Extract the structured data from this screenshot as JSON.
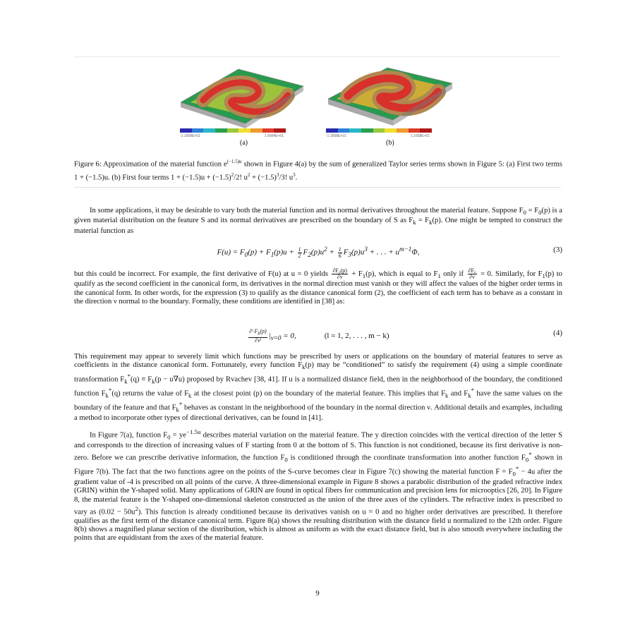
{
  "figure": {
    "sub_a_label": "(a)",
    "sub_b_label": "(b)",
    "colorbar_a_min": "-1.1658E+01",
    "colorbar_a_max": "1.5664E+01",
    "colorbar_b_min": "-1.1658E+01",
    "colorbar_b_max": "1.1658E+01",
    "colorbar_colors": [
      "#2a2ab0",
      "#2f7fd8",
      "#29b8c8",
      "#2aa050",
      "#9cc83a",
      "#f0e030",
      "#f09a30",
      "#e03a2a",
      "#b01818"
    ]
  },
  "caption": {
    "p1": "Figure 6: Approximation of the material function e",
    "p1_sup": "(−1.5)u",
    "p2": " shown in Figure 4(a) by the sum of generalized Taylor series terms shown in Figure 5: (a) First two terms 1 + (−1.5)u. (b) First four terms 1 + (−1.5)u + ",
    "p3": "(−1.5)",
    "p3_sup": "2",
    "p4": "/2! u",
    "p4_sup": "2",
    "p5": " + (−1.5)",
    "p5_sup": "3",
    "p6": "/3! u",
    "p6_sup": "3",
    "p7": "."
  },
  "para1": {
    "a": "In some applications, it may be desirable to vary both the material function and its normal derivatives throughout the material feature. Suppose F",
    "a_sub": "0",
    "b": " = F",
    "b_sub": "0",
    "c": "(p) is a given material distribution on the feature S and its normal derivatives are prescribed on the boundary of S as F",
    "c_sub": "k",
    "d": " = F",
    "d_sub": "k",
    "e": "(p). One might be tempted to construct the material function as"
  },
  "eq3": {
    "left": "F(u) = F",
    "s0": "0",
    "m1": "(p) + F",
    "s1": "1",
    "m2": "(p)u + ",
    "f1t": "1",
    "f1b": "2",
    "m3": "F",
    "s2": "2",
    "m4": "(p)u",
    "p2": "2",
    "m5": " + ",
    "f2t": "1",
    "f2b": "6",
    "m6": "F",
    "s3": "3",
    "m7": "(p)u",
    "p3": "3",
    "m8": " + . . . + u",
    "pm": "m−1",
    "m9": "Φ,",
    "number": "(3)"
  },
  "para2": {
    "a": "but this could be incorrect. For example, the first derivative of F(u) at u = 0 yields ",
    "f1t": "∂F₀(p)",
    "f1b": "∂ν",
    "b": " + F",
    "b_sub": "1",
    "c": "(p), which is equal to F",
    "c_sub": "1",
    "d": " only if ",
    "f2t": "∂F₀",
    "f2b": "∂ν",
    "e": " = 0. Similarly, for F",
    "e_sub": "1",
    "f": "(p) to qualify as the second coefficient in the canonical form, its derivatives in the normal direction must vanish or they will affect the values of the higher order terms in the canonical form. In other words, for the expression (3) to qualify as the distance canonical form (2), the coefficient of each term has to behave as a constant in the direction ν normal to the boundary. Formally, these conditions are identified in [38] as:"
  },
  "eq4": {
    "ft": "∂ˡ F",
    "ft_sub": "k",
    "ft_end": "(p)",
    "fb": "∂νˡ",
    "mid": "|",
    "mid_sub": "ν=0",
    "mid2": " = 0,",
    "cond": "(l = 1, 2, . . . , m − k)",
    "number": "(4)"
  },
  "para3": {
    "a": "This requirement may appear to severely limit which functions may be prescribed by users or applications on the boundary of material features to serve as coefficients in the distance canonical form. Fortunately, every function F",
    "a_sub": "k",
    "b": "(p) may be “conditioned” to satisfy the requirement (4) using a simple coordinate transformation F",
    "b_sub": "k",
    "b_sup": "*",
    "c": "(q) ≡ F",
    "c_sub": "k",
    "d": "(p − u∇u) proposed by Rvachev [38, 41]. If u is a normalized distance field, then in the neighborhood of the boundary, the conditioned function F",
    "d_sub": "k",
    "d_sup": "*",
    "e": "(q) returns the value of F",
    "e_sub": "k",
    "f": " at the closest point (p) on the boundary of the material feature. This implies that F",
    "f_sub": "k",
    "g": " and F",
    "g_sub": "k",
    "g_sup": "*",
    "h": " have the same values on the boundary of the feature and that F",
    "h_sub": "k",
    "h_sup": "*",
    "i": " behaves as constant in the neighborhood of the boundary in the normal direction ν. Additional details and examples, including a method to incorporate other types of directional derivatives, can be found in [41]."
  },
  "para4": {
    "a": "In Figure 7(a), function F",
    "a_sub": "0",
    "b": " = ye",
    "b_sup": "−1.5u",
    "c": " describes material variation on the material feature. The y direction coincides with the vertical direction of the letter S and corresponds to the direction of increasing values of F starting from 0 at the bottom of S. This function is not conditioned, because its first derivative is non-zero. Before we can prescribe derivative information, the function F",
    "c_sub": "0",
    "d": " is conditioned through the coordinate transformation into another function F",
    "d_sub": "0",
    "d_sup": "*",
    "e": " shown in Figure 7(b). The fact that the two functions agree on the points of the S-curve becomes clear in Figure 7(c) showing the material function F = F",
    "e_sub": "0",
    "e_sup": "*",
    "f": " − 4u after the gradient value of -4 is prescribed on all points of the curve. A three-dimensional example in Figure 8 shows a parabolic distribution of the graded refractive index (GRIN) within the Y-shaped solid. Many applications of GRIN are found in optical fibers for communication and precision lens for microoptics [26, 20]. In Figure 8, the material feature is the Y-shaped one-dimensional skeleton constructed as the union of the three axes of the cylinders. The refractive index is prescribed to vary as (0.02 − 50u",
    "f_sup": "2",
    "g": "). This function is already conditioned because its derivatives vanish on u = 0 and no higher order derivatives are prescribed. It therefore qualifies as the first term of the distance canonical term. Figure 8(a) shows the resulting distribution with the distance field u normalized to the 12th order. Figure 8(b) shows a magnified planar section of the distribution, which is almost as uniform as with the exact distance field, but is also smooth everywhere including the points that are equidistant from the axes of the material feature."
  },
  "page_number": "9"
}
